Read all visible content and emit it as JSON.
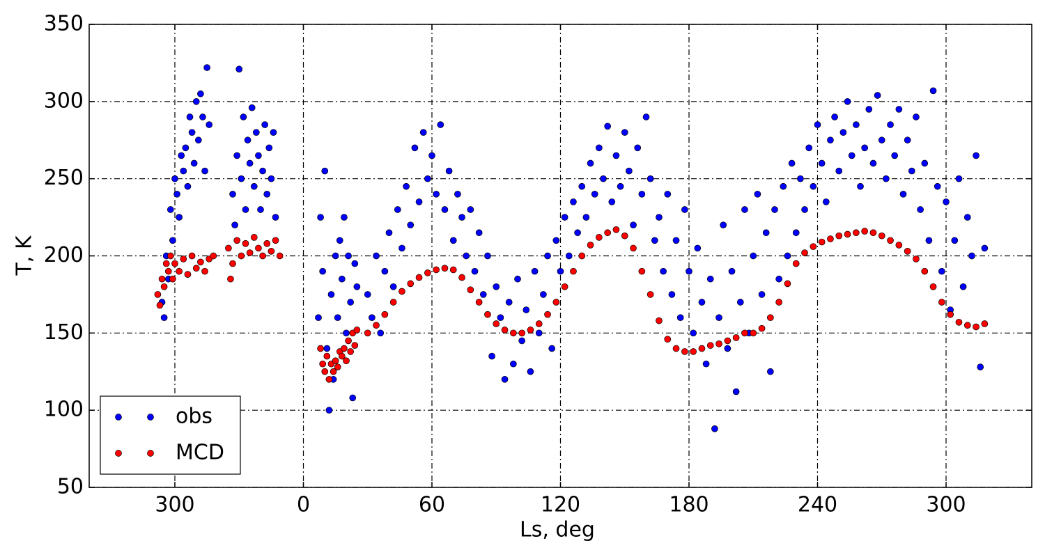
{
  "chart_data": {
    "type": "scatter",
    "xlabel": "Ls, deg",
    "ylabel": "T, K",
    "xlim": [
      -100,
      340
    ],
    "ylim": [
      50,
      350
    ],
    "xticks": [
      {
        "value": -60,
        "label": "300"
      },
      0,
      60,
      120,
      180,
      240,
      300
    ],
    "yticks": [
      50,
      100,
      150,
      200,
      250,
      300,
      350
    ],
    "grid": true,
    "legend": "lower left",
    "series": [
      {
        "name": "obs",
        "color": "#0000ff",
        "x": [
          -66,
          -65,
          -64,
          -63,
          -62,
          -61,
          -60,
          -59,
          -58,
          -57,
          -56,
          -55,
          -54,
          -53,
          -52,
          -51,
          -50,
          -49,
          -48,
          -47,
          -46,
          -45,
          -44,
          -33,
          -32,
          -31,
          -30,
          -29,
          -28,
          -27,
          -26,
          -25,
          -24,
          -23,
          -22,
          -21,
          -20,
          -19,
          -18,
          -17,
          -16,
          -15,
          -14,
          -13,
          7,
          8,
          9,
          10,
          11,
          12,
          13,
          14,
          15,
          16,
          17,
          18,
          19,
          20,
          21,
          22,
          23,
          24,
          25,
          30,
          32,
          34,
          36,
          38,
          40,
          42,
          44,
          46,
          48,
          50,
          52,
          54,
          56,
          58,
          60,
          62,
          64,
          66,
          68,
          70,
          72,
          74,
          76,
          78,
          80,
          82,
          84,
          86,
          88,
          90,
          92,
          94,
          96,
          98,
          100,
          102,
          104,
          106,
          108,
          110,
          112,
          114,
          116,
          118,
          120,
          122,
          124,
          126,
          128,
          130,
          132,
          134,
          136,
          138,
          140,
          142,
          144,
          146,
          148,
          150,
          152,
          154,
          156,
          158,
          160,
          162,
          164,
          166,
          168,
          170,
          172,
          174,
          176,
          178,
          180,
          182,
          184,
          186,
          188,
          190,
          192,
          194,
          196,
          198,
          200,
          202,
          204,
          206,
          208,
          210,
          212,
          214,
          216,
          218,
          220,
          222,
          224,
          226,
          228,
          230,
          232,
          234,
          236,
          238,
          240,
          242,
          244,
          246,
          248,
          250,
          252,
          254,
          256,
          258,
          260,
          262,
          264,
          266,
          268,
          270,
          272,
          274,
          276,
          278,
          280,
          282,
          284,
          286,
          288,
          290,
          292,
          294,
          296,
          298,
          300,
          302,
          304,
          306,
          308,
          310,
          312,
          314,
          316,
          318
        ],
        "values": [
          170,
          160,
          200,
          185,
          230,
          210,
          250,
          240,
          225,
          265,
          255,
          270,
          245,
          290,
          280,
          260,
          300,
          275,
          305,
          290,
          255,
          322,
          285,
          240,
          220,
          265,
          321,
          250,
          290,
          230,
          275,
          260,
          296,
          245,
          280,
          265,
          230,
          255,
          285,
          240,
          270,
          250,
          280,
          225,
          160,
          225,
          190,
          255,
          140,
          100,
          175,
          120,
          200,
          160,
          210,
          185,
          225,
          150,
          200,
          170,
          108,
          195,
          180,
          175,
          160,
          200,
          150,
          190,
          215,
          180,
          230,
          205,
          245,
          220,
          270,
          235,
          280,
          250,
          265,
          240,
          285,
          230,
          255,
          210,
          240,
          225,
          200,
          230,
          190,
          215,
          175,
          200,
          135,
          180,
          160,
          120,
          170,
          130,
          185,
          145,
          165,
          125,
          190,
          150,
          175,
          200,
          140,
          210,
          190,
          225,
          200,
          235,
          215,
          245,
          225,
          260,
          240,
          270,
          250,
          284,
          235,
          265,
          245,
          280,
          255,
          220,
          270,
          240,
          290,
          250,
          210,
          225,
          190,
          240,
          175,
          210,
          160,
          230,
          190,
          150,
          205,
          170,
          130,
          185,
          88,
          160,
          220,
          140,
          190,
          112,
          170,
          230,
          150,
          200,
          240,
          175,
          215,
          125,
          230,
          185,
          245,
          200,
          260,
          215,
          250,
          230,
          270,
          245,
          285,
          260,
          235,
          275,
          290,
          255,
          280,
          300,
          265,
          285,
          245,
          270,
          295,
          260,
          304,
          275,
          250,
          285,
          265,
          295,
          240,
          275,
          255,
          290,
          230,
          260,
          210,
          307,
          245,
          190,
          235,
          165,
          210,
          250,
          180,
          225,
          200,
          265,
          128,
          205
        ]
      },
      {
        "name": "MCD",
        "color": "#ff0000",
        "x": [
          -68,
          -67,
          -66,
          -65,
          -64,
          -63,
          -62,
          -61,
          -60,
          -58,
          -56,
          -54,
          -52,
          -50,
          -48,
          -46,
          -44,
          -42,
          -35,
          -34,
          -33,
          -31,
          -29,
          -27,
          -25,
          -23,
          -21,
          -19,
          -17,
          -15,
          -13,
          -11,
          8,
          9,
          10,
          11,
          12,
          13,
          14,
          15,
          16,
          17,
          18,
          19,
          20,
          21,
          22,
          23,
          24,
          25,
          30,
          34,
          38,
          42,
          46,
          50,
          54,
          58,
          62,
          66,
          70,
          74,
          78,
          82,
          86,
          90,
          94,
          98,
          102,
          106,
          110,
          114,
          118,
          122,
          126,
          130,
          134,
          138,
          142,
          146,
          150,
          154,
          158,
          162,
          166,
          170,
          174,
          178,
          182,
          186,
          190,
          194,
          198,
          202,
          206,
          210,
          214,
          218,
          222,
          226,
          230,
          234,
          238,
          242,
          246,
          250,
          254,
          258,
          262,
          266,
          270,
          274,
          278,
          282,
          286,
          290,
          294,
          298,
          302,
          306,
          310,
          314,
          318
        ],
        "values": [
          175,
          168,
          185,
          180,
          195,
          190,
          200,
          185,
          195,
          190,
          198,
          188,
          200,
          192,
          196,
          190,
          198,
          200,
          205,
          185,
          195,
          210,
          200,
          208,
          202,
          212,
          205,
          200,
          208,
          203,
          210,
          200,
          140,
          130,
          125,
          135,
          120,
          130,
          125,
          132,
          128,
          138,
          135,
          140,
          132,
          145,
          138,
          150,
          142,
          152,
          150,
          155,
          162,
          170,
          177,
          182,
          186,
          189,
          191,
          192,
          191,
          186,
          178,
          170,
          162,
          156,
          152,
          150,
          150,
          152,
          156,
          162,
          170,
          180,
          190,
          200,
          207,
          212,
          215,
          217,
          213,
          205,
          190,
          175,
          158,
          146,
          140,
          138,
          138,
          140,
          142,
          143,
          145,
          147,
          150,
          150,
          153,
          160,
          170,
          182,
          195,
          202,
          206,
          209,
          211,
          213,
          214,
          215,
          216,
          215,
          213,
          210,
          207,
          203,
          198,
          190,
          180,
          170,
          162,
          157,
          155,
          154,
          156
        ]
      }
    ]
  }
}
